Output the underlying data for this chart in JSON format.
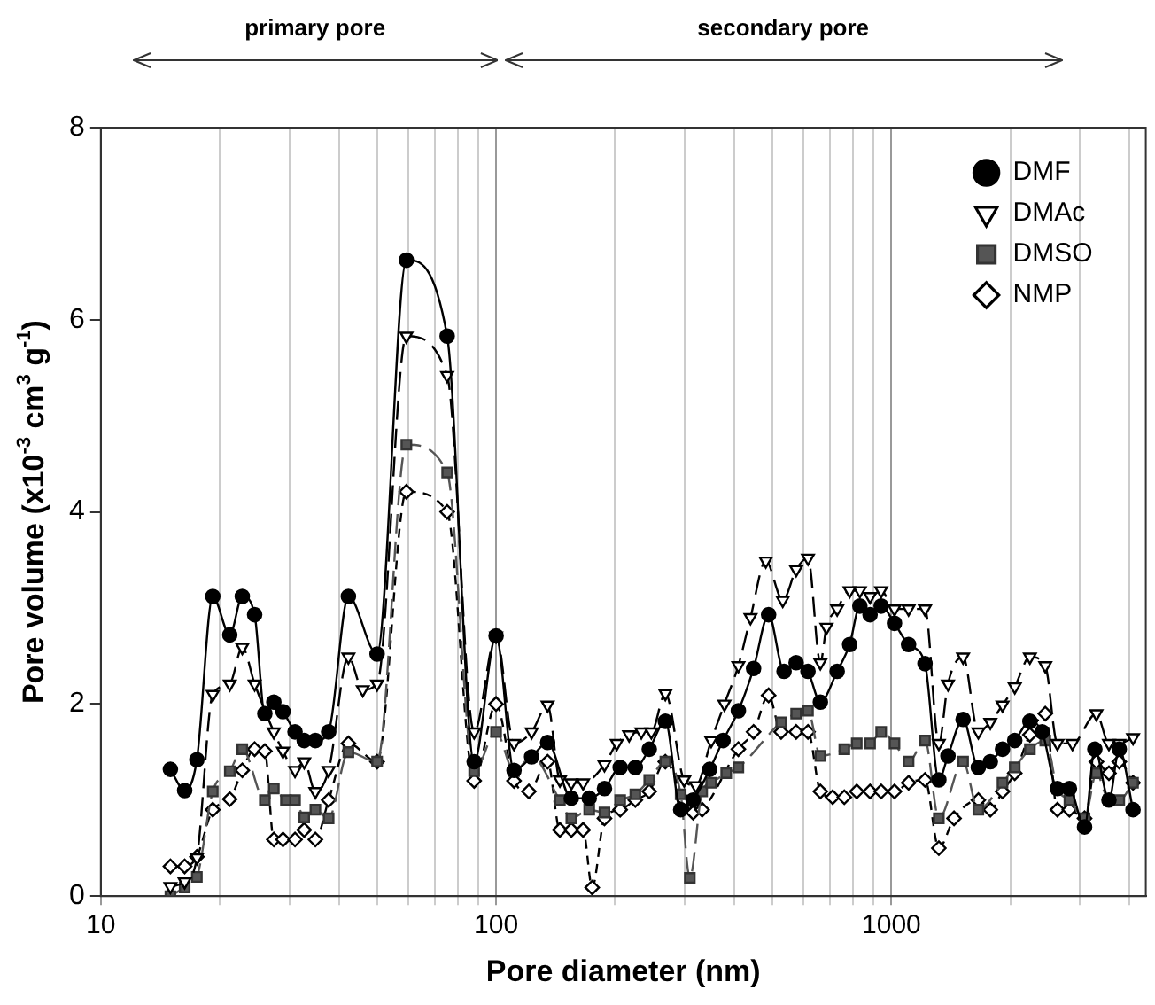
{
  "chart_data": {
    "type": "line",
    "xlabel": "Pore diameter (nm)",
    "ylabel": "Pore volume (x10$^{-3}$ cm$^{3}$ g$^{-1}$)",
    "log": "x",
    "xlim": [
      10,
      4400
    ],
    "ylim": [
      0,
      8
    ],
    "xticks": [
      10,
      {
        "value": 20,
        "label": null
      },
      {
        "value": 30,
        "label": null
      },
      {
        "value": 40,
        "label": null
      },
      {
        "value": 50,
        "label": null
      },
      {
        "value": 60,
        "label": null
      },
      {
        "value": 70,
        "label": null
      },
      {
        "value": 80,
        "label": null
      },
      {
        "value": 90,
        "label": null
      },
      100,
      {
        "value": 200,
        "label": null
      },
      {
        "value": 300,
        "label": null
      },
      {
        "value": 400,
        "label": null
      },
      {
        "value": 500,
        "label": null
      },
      {
        "value": 600,
        "label": null
      },
      {
        "value": 700,
        "label": null
      },
      {
        "value": 800,
        "label": null
      },
      {
        "value": 900,
        "label": null
      },
      1000,
      {
        "value": 2000,
        "label": null
      },
      {
        "value": 3000,
        "label": null
      },
      {
        "value": 4000,
        "label": null
      }
    ],
    "yticks": [
      0,
      2,
      4,
      6,
      8
    ],
    "grid": "x",
    "legend": "top right",
    "annotations": [
      "primary pore",
      "secondary pore"
    ],
    "series": [
      {
        "name": "DMF",
        "color": "#000000",
        "marker": "circle",
        "line_style": "solid",
        "x": [
          15,
          16.3,
          17.5,
          19.2,
          21.2,
          22.8,
          24.5,
          26,
          27.4,
          28.9,
          31,
          32.7,
          34.9,
          37.7,
          42.3,
          50,
          59.3,
          75.2,
          88,
          100,
          111,
          123,
          135,
          155,
          172,
          188,
          206,
          225,
          244,
          268,
          293,
          315,
          347,
          375,
          410,
          448,
          489,
          535,
          574,
          615,
          661,
          729,
          784,
          832,
          883,
          942,
          1018,
          1105,
          1216,
          1318,
          1390,
          1518,
          1659,
          1779,
          1910,
          2051,
          2240,
          2405,
          2630,
          2820,
          3080,
          3270,
          3550,
          3770,
          4085
        ],
        "values": [
          1.32,
          1.1,
          1.42,
          3.12,
          2.72,
          3.12,
          2.93,
          1.9,
          2.02,
          1.92,
          1.71,
          1.62,
          1.62,
          1.71,
          3.12,
          2.52,
          6.62,
          5.83,
          1.4,
          2.71,
          1.31,
          1.45,
          1.6,
          1.02,
          1.02,
          1.12,
          1.34,
          1.34,
          1.53,
          1.82,
          0.9,
          1.0,
          1.32,
          1.62,
          1.93,
          2.37,
          2.93,
          2.34,
          2.43,
          2.34,
          2.02,
          2.34,
          2.62,
          3.02,
          2.93,
          3.02,
          2.84,
          2.62,
          2.42,
          1.21,
          1.46,
          1.84,
          1.34,
          1.4,
          1.53,
          1.62,
          1.82,
          1.71,
          1.12,
          1.12,
          0.72,
          1.53,
          1.0,
          1.53,
          0.9
        ]
      },
      {
        "name": "DMAc",
        "color": "#000000",
        "marker": "triangle",
        "line_style": "dashed",
        "x": [
          15,
          16.3,
          17.5,
          19.2,
          21.2,
          22.8,
          24.5,
          27.4,
          28.9,
          31,
          32.7,
          34.9,
          37.7,
          42.3,
          46,
          50,
          59.3,
          75.2,
          88,
          100,
          111,
          123,
          135,
          145,
          155,
          166,
          188,
          202,
          217,
          233,
          247,
          268,
          299,
          320,
          350,
          378,
          410,
          440,
          481,
          531,
          574,
          615,
          661,
          685,
          729,
          784,
          832,
          883,
          942,
          1018,
          1105,
          1216,
          1318,
          1390,
          1518,
          1659,
          1779,
          1910,
          2051,
          2240,
          2450,
          2630,
          2870,
          3300,
          3550,
          3770,
          4085
        ],
        "values": [
          0.1,
          0.15,
          0.4,
          2.1,
          2.21,
          2.59,
          2.21,
          1.71,
          1.51,
          1.31,
          1.4,
          1.09,
          1.31,
          2.49,
          2.15,
          2.21,
          5.83,
          5.42,
          1.71,
          2.71,
          1.59,
          1.71,
          1.99,
          1.21,
          1.18,
          1.18,
          1.37,
          1.59,
          1.68,
          1.71,
          1.71,
          2.11,
          1.21,
          1.15,
          1.62,
          2.0,
          2.4,
          2.9,
          3.49,
          3.08,
          3.4,
          3.52,
          2.43,
          2.8,
          2.99,
          3.18,
          3.18,
          3.12,
          3.18,
          2.99,
          2.99,
          2.99,
          1.59,
          2.21,
          2.49,
          1.71,
          1.81,
          1.99,
          2.18,
          2.49,
          2.4,
          1.59,
          1.59,
          1.9,
          1.59,
          1.59,
          1.65
        ]
      },
      {
        "name": "DMSO",
        "color": "#555555",
        "marker": "square",
        "line_style": "dashed",
        "x": [
          15,
          16.3,
          17.5,
          19.2,
          21.2,
          22.8,
          26,
          27.4,
          29.4,
          31,
          32.7,
          34.9,
          37.7,
          42.3,
          50,
          59.3,
          75.2,
          88,
          100,
          111,
          123,
          145,
          155,
          172,
          188,
          206,
          225,
          244,
          268,
          293,
          309,
          332,
          350,
          382,
          410,
          526,
          574,
          615,
          661,
          760,
          817,
          883,
          942,
          1018,
          1105,
          1216,
          1318,
          1518,
          1659,
          1910,
          2051,
          2240,
          2450,
          2630,
          2820,
          3080,
          3300,
          3550,
          3770,
          4085
        ],
        "values": [
          0.0,
          0.09,
          0.2,
          1.09,
          1.3,
          1.53,
          1.0,
          1.12,
          1.0,
          1.0,
          0.82,
          0.9,
          0.81,
          1.5,
          1.4,
          4.7,
          4.41,
          1.3,
          1.71,
          1.3,
          1.45,
          1.0,
          0.81,
          0.9,
          0.87,
          1.0,
          1.06,
          1.21,
          1.4,
          1.06,
          0.19,
          1.09,
          1.18,
          1.28,
          1.34,
          1.81,
          1.9,
          1.93,
          1.46,
          1.53,
          1.59,
          1.59,
          1.71,
          1.59,
          1.4,
          1.62,
          0.81,
          1.4,
          0.9,
          1.18,
          1.34,
          1.53,
          1.62,
          1.12,
          1.0,
          0.81,
          1.28,
          1.0,
          1.0,
          1.18
        ]
      },
      {
        "name": "NMP",
        "color": "#000000",
        "marker": "diamond",
        "line_style": "dotted",
        "x": [
          15,
          16.3,
          17.5,
          19.2,
          21.2,
          22.8,
          24.5,
          26,
          27.4,
          28.9,
          31,
          32.7,
          34.9,
          37.7,
          42.3,
          50,
          59.3,
          75.2,
          88,
          100,
          111,
          121,
          135,
          145,
          155,
          166,
          175,
          188,
          206,
          225,
          244,
          268,
          299,
          315,
          332,
          410,
          448,
          489,
          526,
          574,
          615,
          661,
          710,
          760,
          817,
          883,
          942,
          1018,
          1105,
          1216,
          1318,
          1440,
          1659,
          1779,
          1910,
          2051,
          2240,
          2450,
          2630,
          2820,
          3080,
          3300,
          3550,
          3770,
          4085
        ],
        "values": [
          0.31,
          0.31,
          0.41,
          0.9,
          1.01,
          1.31,
          1.53,
          1.51,
          0.59,
          0.59,
          0.59,
          0.69,
          0.59,
          1.0,
          1.59,
          1.4,
          4.21,
          4.0,
          1.2,
          2.0,
          1.2,
          1.09,
          1.4,
          0.69,
          0.69,
          0.69,
          0.09,
          0.81,
          0.9,
          1.0,
          1.09,
          1.4,
          1.0,
          0.87,
          0.9,
          1.53,
          1.71,
          2.09,
          1.71,
          1.71,
          1.71,
          1.09,
          1.03,
          1.03,
          1.09,
          1.09,
          1.09,
          1.09,
          1.18,
          1.21,
          0.5,
          0.81,
          1.0,
          0.9,
          1.09,
          1.28,
          1.68,
          1.9,
          0.9,
          0.9,
          0.81,
          1.4,
          1.28,
          1.4,
          1.18
        ]
      }
    ]
  }
}
